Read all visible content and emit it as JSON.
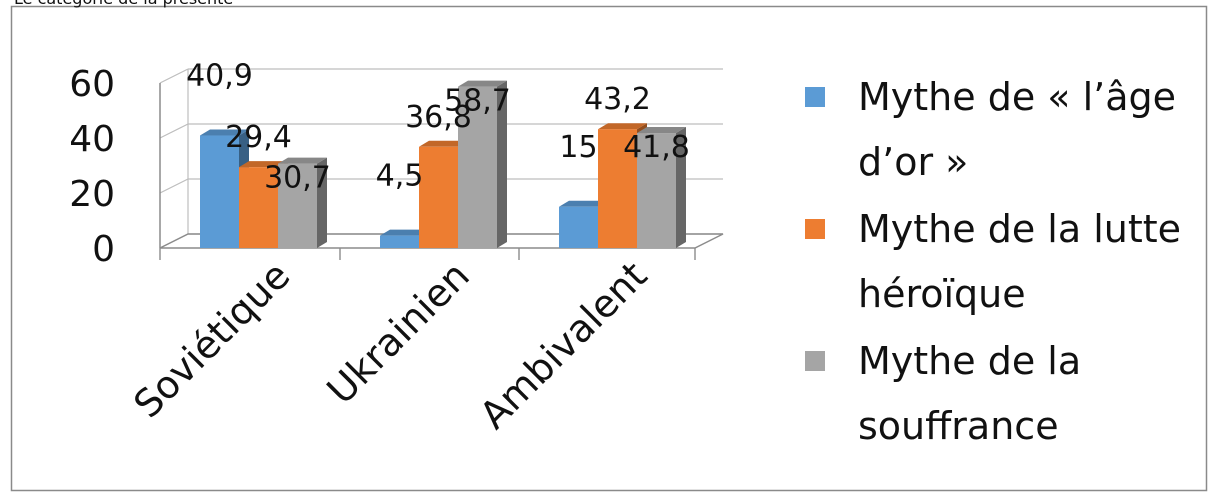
{
  "caption_fragment": "Le catégorie de la présente",
  "chart_data": {
    "type": "bar",
    "categories": [
      "Soviétique",
      "Ukrainien",
      "Ambivalent"
    ],
    "series": [
      {
        "name": "Mythe de « l’âge d’or »",
        "legend_lines": [
          "Mythe de « l’âge",
          "d’or »"
        ],
        "values": [
          40.9,
          4.5,
          15
        ],
        "labels": [
          "40,9",
          "4,5",
          "15"
        ],
        "color": "#5b9bd5"
      },
      {
        "name": "Mythe de la lutte héroïque",
        "legend_lines": [
          "Mythe de la lutte",
          "héroïque"
        ],
        "values": [
          29.4,
          36.8,
          43.2
        ],
        "labels": [
          "29,4",
          "36,8",
          "43,2"
        ],
        "color": "#ed7d31"
      },
      {
        "name": "Mythe de la souffrance",
        "legend_lines": [
          "Mythe de la",
          "souffrance"
        ],
        "values": [
          30.7,
          58.7,
          41.8
        ],
        "labels": [
          "30,7",
          "58,7",
          "41,8"
        ],
        "color": "#a5a5a5"
      }
    ],
    "yticks": [
      0,
      20,
      40,
      60
    ],
    "ylim": [
      0,
      60
    ],
    "grid": true,
    "legend_position": "right",
    "style": "3d-column"
  }
}
